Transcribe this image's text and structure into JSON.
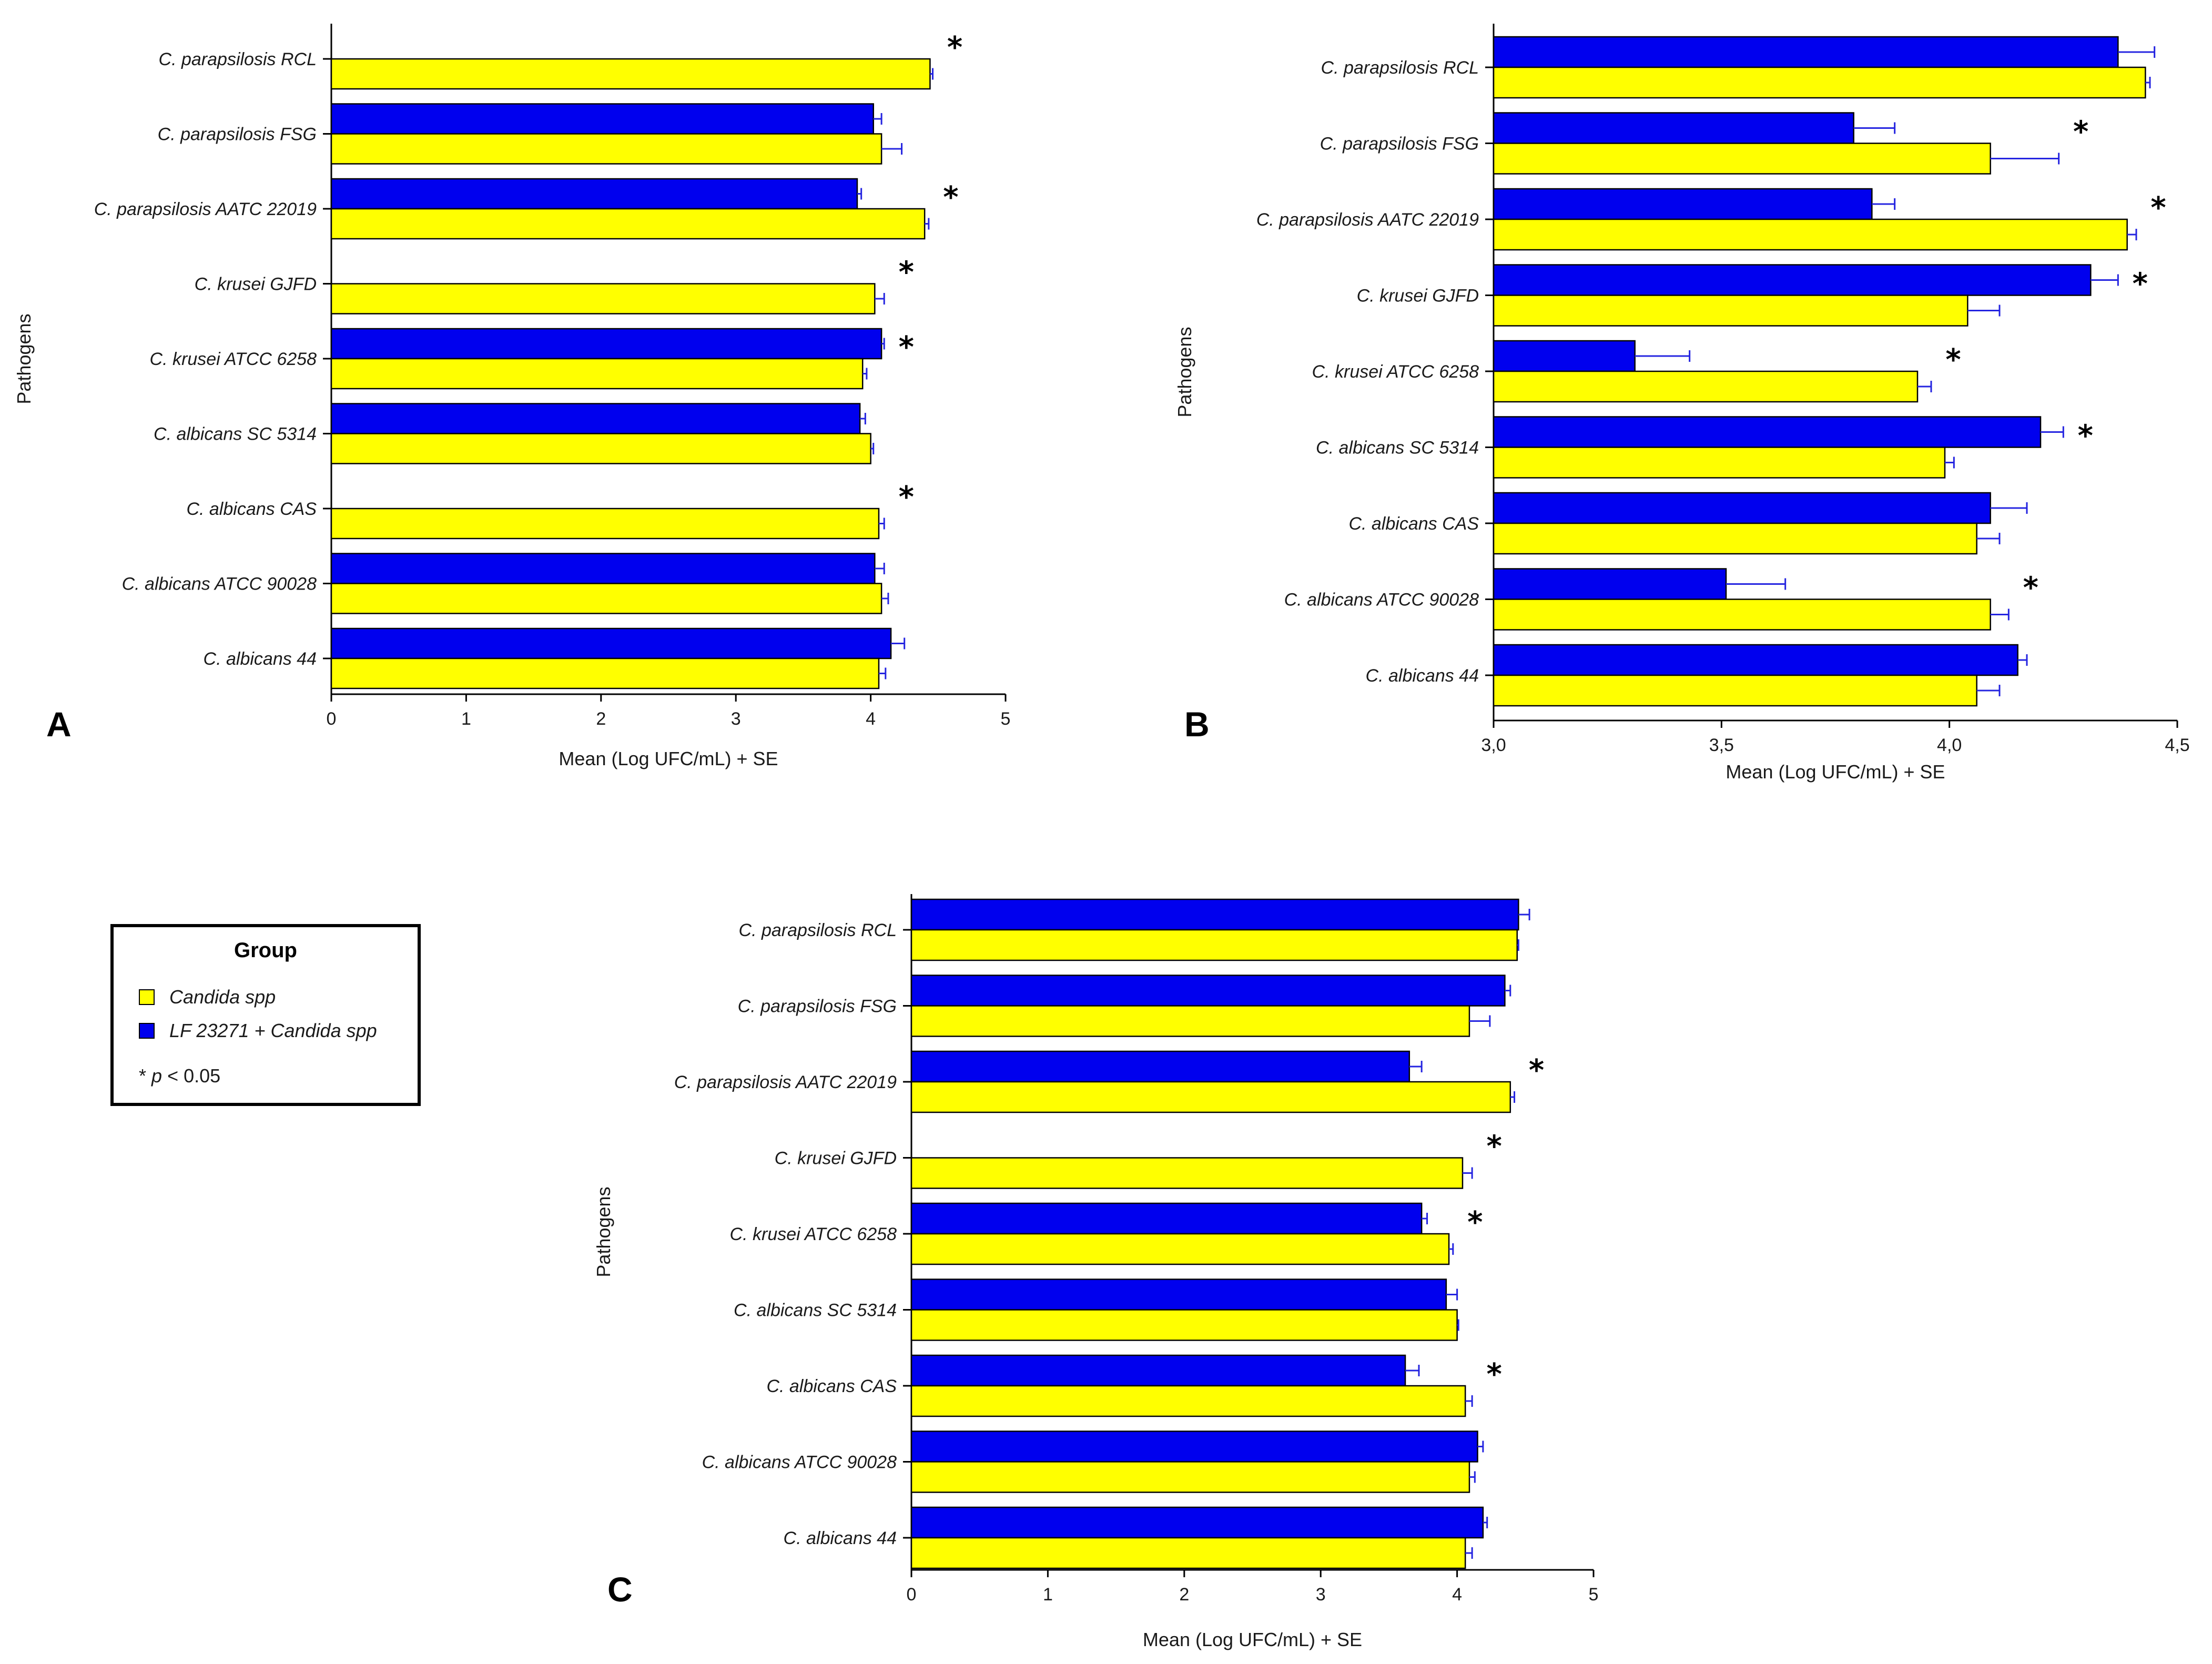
{
  "legend": {
    "title": "Group",
    "items": [
      {
        "label": "Candida spp",
        "color": "#ffff00"
      },
      {
        "label": "LF 23271 + Candida spp",
        "color": "#0000ee"
      }
    ],
    "note_star": "*",
    "note_p": "p",
    "note_rest": " < 0.05"
  },
  "chart_data": [
    {
      "panel": "A",
      "type": "bar",
      "orientation": "horizontal",
      "ylabel": "Pathogens",
      "xlabel": "Mean (Log UFC/mL) + SE",
      "xlim": [
        0,
        5
      ],
      "xticks": [
        "0",
        "1",
        "2",
        "3",
        "4",
        "5"
      ],
      "categories": [
        "C. parapsilosis RCL",
        "C. parapsilosis FSG",
        "C. parapsilosis AATC 22019",
        "C. krusei GJFD",
        "C. krusei ATCC 6258",
        "C. albicans SC 5314",
        "C. albicans CAS",
        "C. albicans ATCC 90028",
        "C. albicans 44"
      ],
      "series": [
        {
          "name": "LF 23271 + Candida spp",
          "color": "#0000ee",
          "values": [
            null,
            4.02,
            3.9,
            null,
            4.08,
            3.92,
            null,
            4.03,
            4.15
          ],
          "errors": [
            null,
            0.06,
            0.03,
            null,
            0.02,
            0.04,
            null,
            0.07,
            0.1
          ]
        },
        {
          "name": "Candida spp",
          "color": "#ffff00",
          "values": [
            4.44,
            4.08,
            4.4,
            4.03,
            3.94,
            4.0,
            4.06,
            4.08,
            4.06
          ],
          "errors": [
            0.02,
            0.15,
            0.03,
            0.07,
            0.03,
            0.02,
            0.04,
            0.05,
            0.05
          ]
        }
      ],
      "significant": [
        true,
        false,
        true,
        true,
        true,
        false,
        true,
        false,
        false
      ],
      "sig_marker": "*"
    },
    {
      "panel": "B",
      "type": "bar",
      "orientation": "horizontal",
      "ylabel": "Pathogens",
      "xlabel": "Mean (Log UFC/mL) + SE",
      "xlim": [
        3.0,
        4.5
      ],
      "xticks": [
        "3,0",
        "3,5",
        "4,0",
        "4,5"
      ],
      "categories": [
        "C. parapsilosis RCL",
        "C. parapsilosis FSG",
        "C. parapsilosis AATC 22019",
        "C. krusei GJFD",
        "C. krusei ATCC 6258",
        "C. albicans SC 5314",
        "C. albicans CAS",
        "C. albicans ATCC 90028",
        "C. albicans 44"
      ],
      "series": [
        {
          "name": "LF 23271 + Candida spp",
          "color": "#0000ee",
          "values": [
            4.37,
            3.79,
            3.83,
            4.31,
            3.31,
            4.2,
            4.09,
            3.51,
            4.15
          ],
          "errors": [
            0.08,
            0.09,
            0.05,
            0.06,
            0.12,
            0.05,
            0.08,
            0.13,
            0.02
          ]
        },
        {
          "name": "Candida spp",
          "color": "#ffff00",
          "values": [
            4.43,
            4.09,
            4.39,
            4.04,
            3.93,
            3.99,
            4.06,
            4.09,
            4.06
          ],
          "errors": [
            0.01,
            0.15,
            0.02,
            0.07,
            0.03,
            0.02,
            0.05,
            0.04,
            0.05
          ]
        }
      ],
      "significant": [
        false,
        true,
        true,
        true,
        true,
        true,
        false,
        true,
        false
      ],
      "sig_marker": "*"
    },
    {
      "panel": "C",
      "type": "bar",
      "orientation": "horizontal",
      "ylabel": "Pathogens",
      "xlabel": "Mean (Log UFC/mL) + SE",
      "xlim": [
        0,
        5
      ],
      "xticks": [
        "0",
        "1",
        "2",
        "3",
        "4",
        "5"
      ],
      "categories": [
        "C. parapsilosis RCL",
        "C. parapsilosis FSG",
        "C. parapsilosis AATC 22019",
        "C. krusei GJFD",
        "C. krusei ATCC 6258",
        "C. albicans SC 5314",
        "C. albicans CAS",
        "C. albicans ATCC 90028",
        "C. albicans 44"
      ],
      "series": [
        {
          "name": "LF 23271 + Candida spp",
          "color": "#0000ee",
          "values": [
            4.45,
            4.35,
            3.65,
            null,
            3.74,
            3.92,
            3.62,
            4.15,
            4.19
          ],
          "errors": [
            0.08,
            0.04,
            0.09,
            null,
            0.04,
            0.08,
            0.1,
            0.04,
            0.03
          ]
        },
        {
          "name": "Candida spp",
          "color": "#ffff00",
          "values": [
            4.44,
            4.09,
            4.39,
            4.04,
            3.94,
            4.0,
            4.06,
            4.09,
            4.06
          ],
          "errors": [
            0.01,
            0.15,
            0.03,
            0.07,
            0.03,
            0.01,
            0.05,
            0.04,
            0.05
          ]
        }
      ],
      "significant": [
        false,
        false,
        true,
        true,
        true,
        false,
        true,
        false,
        false
      ],
      "sig_marker": "*"
    }
  ]
}
